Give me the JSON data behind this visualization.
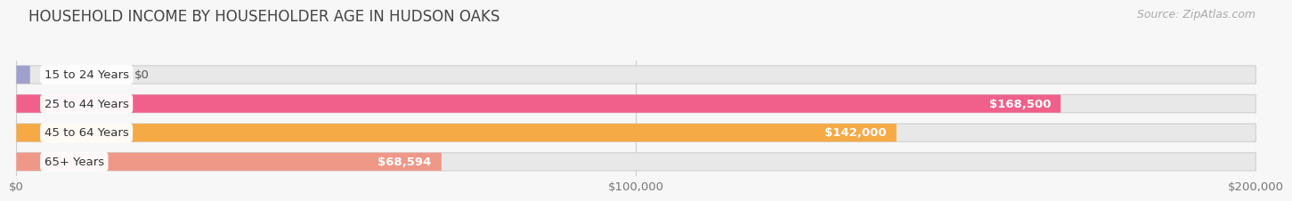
{
  "title": "HOUSEHOLD INCOME BY HOUSEHOLDER AGE IN HUDSON OAKS",
  "source": "Source: ZipAtlas.com",
  "categories": [
    "15 to 24 Years",
    "25 to 44 Years",
    "45 to 64 Years",
    "65+ Years"
  ],
  "values": [
    0,
    168500,
    142000,
    68594
  ],
  "bar_colors": [
    "#a0a0cc",
    "#f0608a",
    "#f5aa45",
    "#f09888"
  ],
  "bar_bg_color": "#e8e8e8",
  "bar_border_color": "#d0d0d0",
  "labels": [
    "$0",
    "$168,500",
    "$142,000",
    "$68,594"
  ],
  "xmax": 200000,
  "xtick_labels": [
    "$0",
    "$100,000",
    "$200,000"
  ],
  "xtick_values": [
    0,
    100000,
    200000
  ],
  "background_color": "#f7f7f7",
  "title_fontsize": 12,
  "label_fontsize": 9.5,
  "tick_fontsize": 9.5,
  "source_fontsize": 9
}
